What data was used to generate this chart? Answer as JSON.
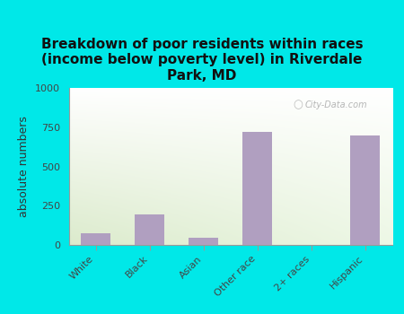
{
  "title": "Breakdown of poor residents within races\n(income below poverty level) in Riverdale\nPark, MD",
  "categories": [
    "White",
    "Black",
    "Asian",
    "Other race",
    "2+ races",
    "Hispanic"
  ],
  "values": [
    75,
    195,
    45,
    720,
    0,
    695
  ],
  "bar_color": "#b09fc0",
  "ylabel": "absolute numbers",
  "ylim": [
    0,
    1000
  ],
  "yticks": [
    0,
    250,
    500,
    750,
    1000
  ],
  "bg_color_topleft": "#e8f5e0",
  "bg_color_topright": "#f8fdf5",
  "bg_color_bottomleft": "#c8e8c0",
  "outer_background": "#00e8e8",
  "title_fontsize": 11,
  "title_fontweight": "bold",
  "ylabel_fontsize": 9,
  "tick_fontsize": 8,
  "watermark": "City-Data.com"
}
